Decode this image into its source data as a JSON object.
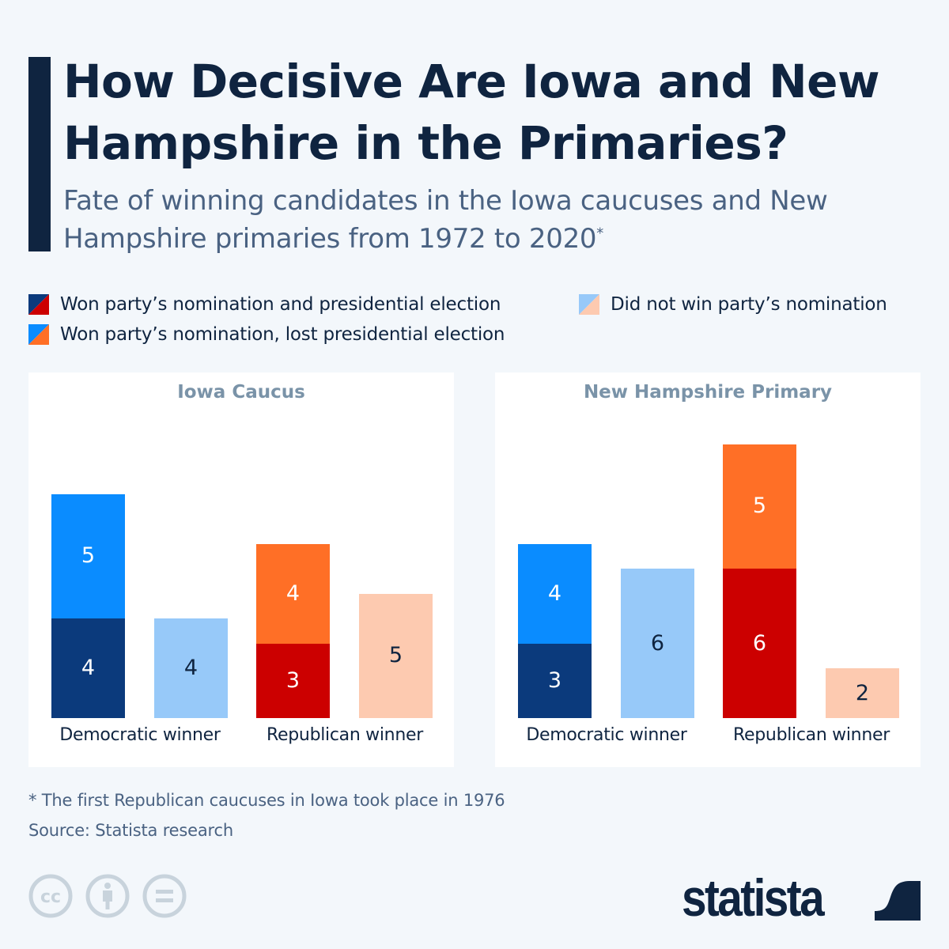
{
  "header": {
    "title": "How Decisive Are Iowa and New Hampshire in the Primaries?",
    "subtitle": "Fate of winning candidates in the Iowa caucuses and New Hampshire primaries from 1972 to 2020",
    "subtitle_marker": "*"
  },
  "legend": [
    {
      "label": "Won party’s nomination and presidential election",
      "colors": [
        "#0b3a7c",
        "#cc0000"
      ]
    },
    {
      "label": "Did not win party’s nomination",
      "colors": [
        "#97c9f9",
        "#fdcab0"
      ]
    },
    {
      "label": "Won party’s nomination, lost presidential election",
      "colors": [
        "#0a8cff",
        "#ff6f26"
      ]
    }
  ],
  "colors": {
    "dem_won": "#0b3a7c",
    "dem_lost": "#0a8cff",
    "dem_not": "#97c9f9",
    "rep_won": "#cc0000",
    "rep_lost": "#ff6f26",
    "rep_not": "#fdcab0"
  },
  "chart_data": [
    {
      "type": "bar",
      "title": "Iowa Caucus",
      "categories": [
        "Democratic winner",
        "Republican winner"
      ],
      "series": [
        {
          "name": "Won party’s nomination and presidential election",
          "values": [
            4,
            3
          ],
          "stack": "won_nomination"
        },
        {
          "name": "Won party’s nomination, lost presidential election",
          "values": [
            5,
            4
          ],
          "stack": "won_nomination"
        },
        {
          "name": "Did not win party’s nomination",
          "values": [
            4,
            5
          ],
          "stack": "did_not_win"
        }
      ],
      "xlabel": "",
      "ylabel": "",
      "ylim": [
        0,
        11
      ],
      "grid": false
    },
    {
      "type": "bar",
      "title": "New Hampshire Primary",
      "categories": [
        "Democratic winner",
        "Republican winner"
      ],
      "series": [
        {
          "name": "Won party’s nomination and presidential election",
          "values": [
            3,
            6
          ],
          "stack": "won_nomination"
        },
        {
          "name": "Won party’s nomination, lost presidential election",
          "values": [
            4,
            5
          ],
          "stack": "won_nomination"
        },
        {
          "name": "Did not win party’s nomination",
          "values": [
            6,
            2
          ],
          "stack": "did_not_win"
        }
      ],
      "xlabel": "",
      "ylabel": "",
      "ylim": [
        0,
        11
      ],
      "grid": false
    }
  ],
  "footer": {
    "note": "* The first Republican caucuses in Iowa took place in 1976",
    "source": "Source: Statista research",
    "license_icons": [
      "creative-commons-icon",
      "attribution-icon",
      "no-derivatives-icon"
    ],
    "brand": "statista"
  }
}
